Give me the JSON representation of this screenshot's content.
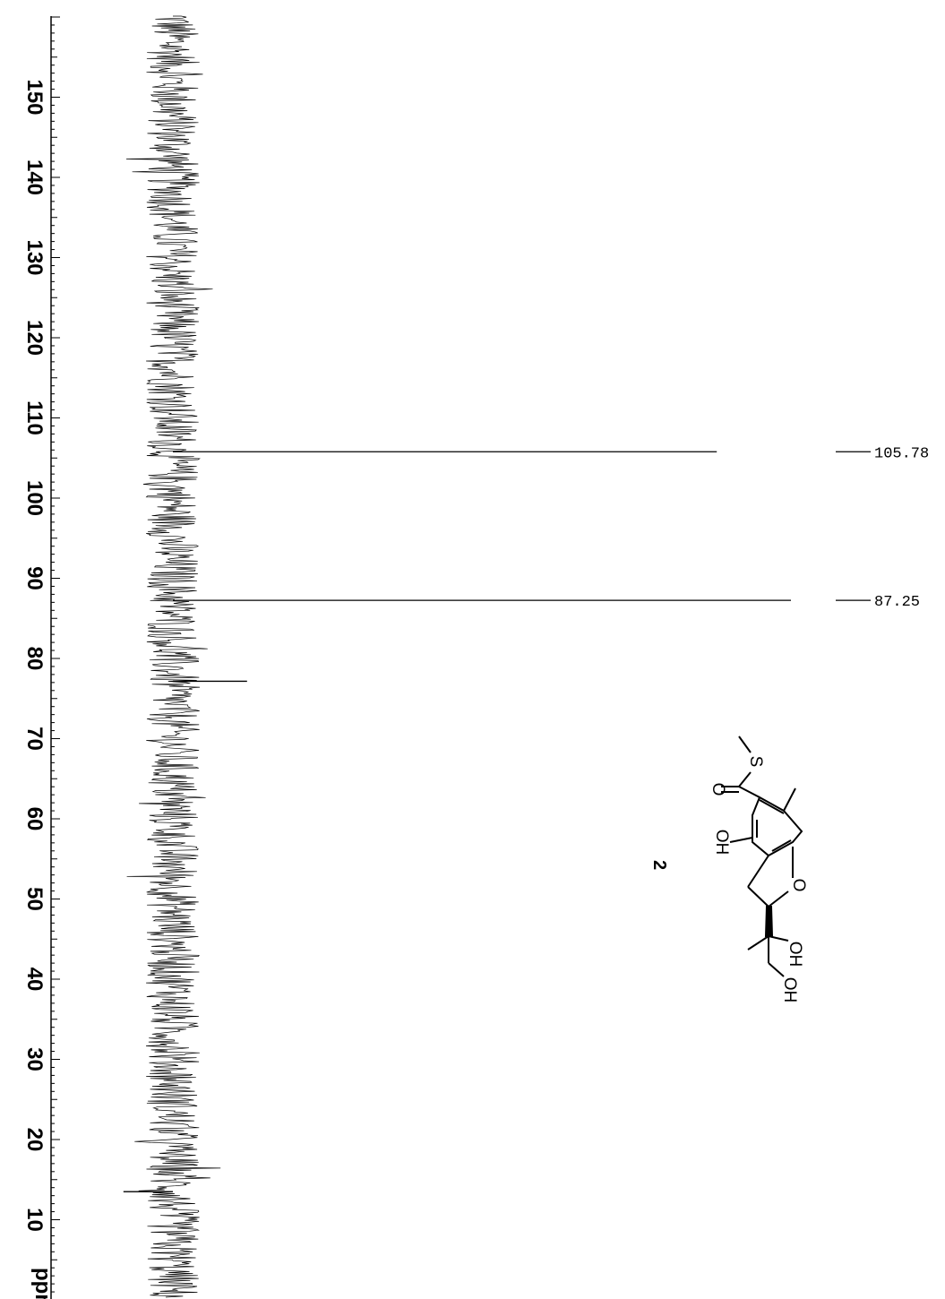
{
  "chart_data": {
    "type": "line",
    "title": "",
    "xlabel": "ppm",
    "ylabel": "",
    "xlim": [
      160,
      0
    ],
    "orientation": "rotated-90",
    "tick_labels": [
      "150",
      "140",
      "130",
      "120",
      "110",
      "100",
      "90",
      "80",
      "70",
      "60",
      "50",
      "40",
      "30",
      "20",
      "10"
    ],
    "tick_values": [
      150,
      140,
      130,
      120,
      110,
      100,
      90,
      80,
      70,
      60,
      50,
      40,
      30,
      20,
      10
    ],
    "unit_label": "ppm",
    "peaks": [
      {
        "ppm": 105.78,
        "label": "105.78",
        "intensity": 0.88
      },
      {
        "ppm": 87.25,
        "label": "87.25",
        "intensity": 1.0
      },
      {
        "ppm": 77.16,
        "label": "",
        "intensity": 0.12
      },
      {
        "ppm": 13.5,
        "label": "",
        "intensity": -0.08
      }
    ],
    "compound_label": "2",
    "structure_atoms": [
      "S",
      "O",
      "OH",
      "O",
      "OH",
      "OH"
    ],
    "colors": {
      "spectrum": "#000000",
      "background": "#ffffff"
    }
  }
}
